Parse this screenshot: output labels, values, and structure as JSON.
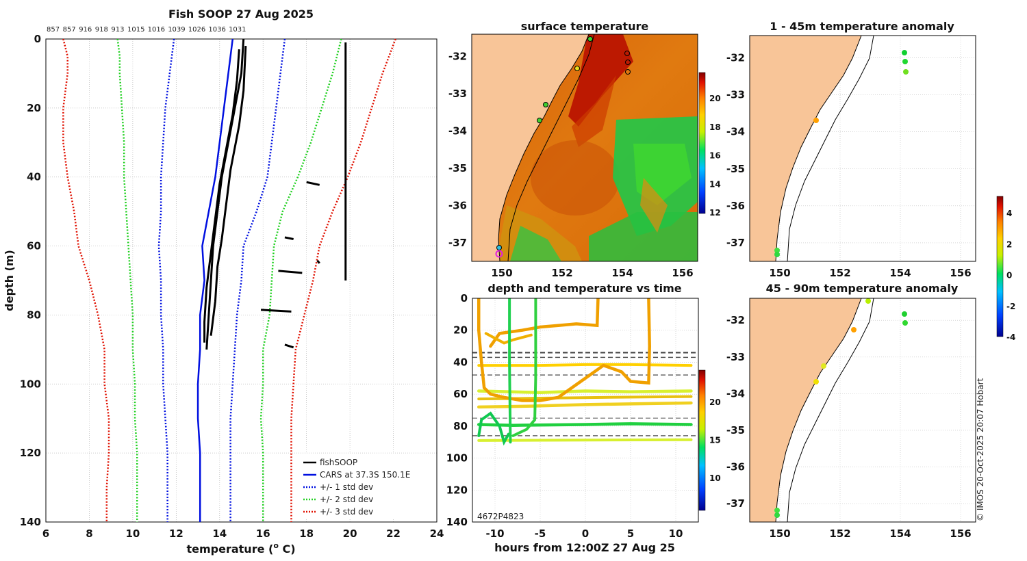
{
  "profile_chart": {
    "type": "line",
    "title": "Fish SOOP 27 Aug 2025",
    "xlabel": "temperature (",
    "xlabel_sup": "o",
    "xlabel_end": " C)",
    "ylabel": "depth (m)",
    "xlim": [
      6,
      24
    ],
    "ylim": [
      140,
      0
    ],
    "xticks": [
      "6",
      "8",
      "10",
      "12",
      "14",
      "16",
      "18",
      "20",
      "22",
      "24"
    ],
    "yticks": [
      "0",
      "20",
      "40",
      "60",
      "80",
      "100",
      "120",
      "140"
    ],
    "top_labels": [
      "857",
      "857",
      "916",
      "918",
      "913",
      "1015",
      "1016",
      "1039",
      "1026",
      "1036",
      "1031"
    ],
    "legend": [
      "fishSOOP",
      "CARS at 37.3S 150.1E",
      "+/- 1 std dev",
      "+/- 2 std dev",
      "+/- 3 std dev"
    ],
    "depths": [
      0,
      5,
      10,
      20,
      30,
      40,
      50,
      60,
      70,
      80,
      90,
      100,
      110,
      120,
      130,
      140
    ],
    "cars_mean": [
      14.6,
      14.5,
      14.4,
      14.2,
      14.0,
      13.8,
      13.5,
      13.2,
      13.3,
      13.1,
      13.1,
      13.0,
      13.0,
      13.1,
      13.1,
      13.1
    ],
    "std1_low": [
      11.9,
      11.8,
      11.7,
      11.5,
      11.4,
      11.3,
      11.3,
      11.2,
      11.3,
      11.3,
      11.4,
      11.4,
      11.5,
      11.6,
      11.6,
      11.6
    ],
    "std1_high": [
      17.0,
      16.9,
      16.8,
      16.6,
      16.4,
      16.2,
      15.7,
      15.1,
      15.0,
      14.8,
      14.7,
      14.6,
      14.5,
      14.5,
      14.5,
      14.5
    ],
    "std2_low": [
      9.3,
      9.4,
      9.4,
      9.5,
      9.6,
      9.6,
      9.7,
      9.8,
      9.9,
      10.0,
      10.0,
      10.1,
      10.1,
      10.2,
      10.2,
      10.2
    ],
    "std2_high": [
      19.6,
      19.4,
      19.2,
      18.7,
      18.2,
      17.6,
      16.9,
      16.5,
      16.4,
      16.3,
      16.0,
      16.0,
      15.9,
      16.0,
      16.0,
      16.0
    ],
    "std3_low": [
      6.8,
      7.0,
      7.0,
      6.8,
      6.8,
      7.0,
      7.3,
      7.5,
      8.0,
      8.4,
      8.7,
      8.7,
      8.9,
      8.9,
      8.8,
      8.8
    ],
    "std3_high": [
      22.1,
      21.8,
      21.5,
      21.0,
      20.5,
      19.9,
      19.2,
      18.6,
      18.3,
      17.9,
      17.5,
      17.4,
      17.3,
      17.3,
      17.3,
      17.3
    ],
    "fishsoop_traces": [
      [
        [
          15.1,
          0
        ],
        [
          15.0,
          10
        ],
        [
          14.7,
          20
        ],
        [
          14.4,
          30
        ],
        [
          14.1,
          40
        ],
        [
          13.9,
          50
        ],
        [
          13.7,
          60
        ],
        [
          13.6,
          70
        ],
        [
          13.5,
          80
        ],
        [
          13.4,
          90
        ]
      ],
      [
        [
          14.9,
          3
        ],
        [
          14.8,
          12
        ],
        [
          14.6,
          22
        ],
        [
          14.3,
          32
        ],
        [
          14.0,
          42
        ],
        [
          13.8,
          52
        ],
        [
          13.6,
          62
        ],
        [
          13.4,
          72
        ],
        [
          13.3,
          82
        ],
        [
          13.3,
          88
        ]
      ],
      [
        [
          15.2,
          2
        ],
        [
          15.1,
          15
        ],
        [
          14.9,
          25
        ],
        [
          14.5,
          38
        ],
        [
          14.3,
          48
        ],
        [
          14.1,
          58
        ],
        [
          13.9,
          66
        ],
        [
          13.8,
          76
        ],
        [
          13.6,
          86
        ]
      ],
      [
        [
          19.8,
          1
        ],
        [
          19.8,
          20
        ],
        [
          19.8,
          40
        ],
        [
          19.8,
          55
        ],
        [
          19.8,
          70
        ]
      ],
      [
        [
          18.0,
          41.5
        ],
        [
          18.6,
          42.3
        ]
      ],
      [
        [
          17.0,
          57.5
        ],
        [
          17.4,
          58.0
        ]
      ],
      [
        [
          16.7,
          67.2
        ],
        [
          17.8,
          67.8
        ]
      ],
      [
        [
          15.9,
          78.5
        ],
        [
          17.3,
          79.0
        ]
      ],
      [
        [
          17.0,
          88.6
        ],
        [
          17.4,
          89.4
        ]
      ],
      [
        [
          18.5,
          64.2
        ],
        [
          18.6,
          65.0
        ]
      ]
    ]
  },
  "sst_map": {
    "title": "surface temperature",
    "xticks": [
      "150",
      "152",
      "154",
      "156"
    ],
    "yticks": [
      "-32",
      "-33",
      "-34",
      "-35",
      "-36",
      "-37"
    ],
    "colorbar_ticks": [
      "20",
      "18",
      "16",
      "14",
      "12"
    ],
    "xlim": [
      149,
      156.5
    ],
    "ylim": [
      -37.5,
      -31.4
    ]
  },
  "anom_map_upper": {
    "title": "1 - 45m temperature anomaly",
    "xticks": [
      "150",
      "152",
      "154",
      "156"
    ],
    "yticks": [
      "-32",
      "-33",
      "-34",
      "-35",
      "-36",
      "-37"
    ],
    "xlim": [
      149,
      156.5
    ],
    "ylim": [
      -37.5,
      -31.4
    ]
  },
  "anom_map_lower": {
    "title": "45 - 90m temperature anomaly",
    "xticks": [
      "150",
      "152",
      "154",
      "156"
    ],
    "yticks": [
      "-32",
      "-33",
      "-34",
      "-35",
      "-36",
      "-37"
    ],
    "xlim": [
      149,
      156.5
    ],
    "ylim": [
      -37.5,
      -31.4
    ]
  },
  "anomaly_colorbar_ticks": [
    "4",
    "2",
    "0",
    "-2",
    "-4"
  ],
  "time_chart": {
    "title": "depth and temperature vs time",
    "xlabel": "hours from 12:00Z 27 Aug 25",
    "xticks": [
      "-10",
      "-5",
      "0",
      "5",
      "10"
    ],
    "yticks": [
      "0",
      "20",
      "40",
      "60",
      "80",
      "100",
      "120",
      "140"
    ],
    "xlim": [
      -12.5,
      12.5
    ],
    "ylim": [
      140,
      0
    ],
    "colorbar_ticks": [
      "20",
      "15",
      "10"
    ],
    "bottom_label": "4672P4823"
  },
  "credit": "© IMOS 20-Oct-2025 20:07 Hobart"
}
